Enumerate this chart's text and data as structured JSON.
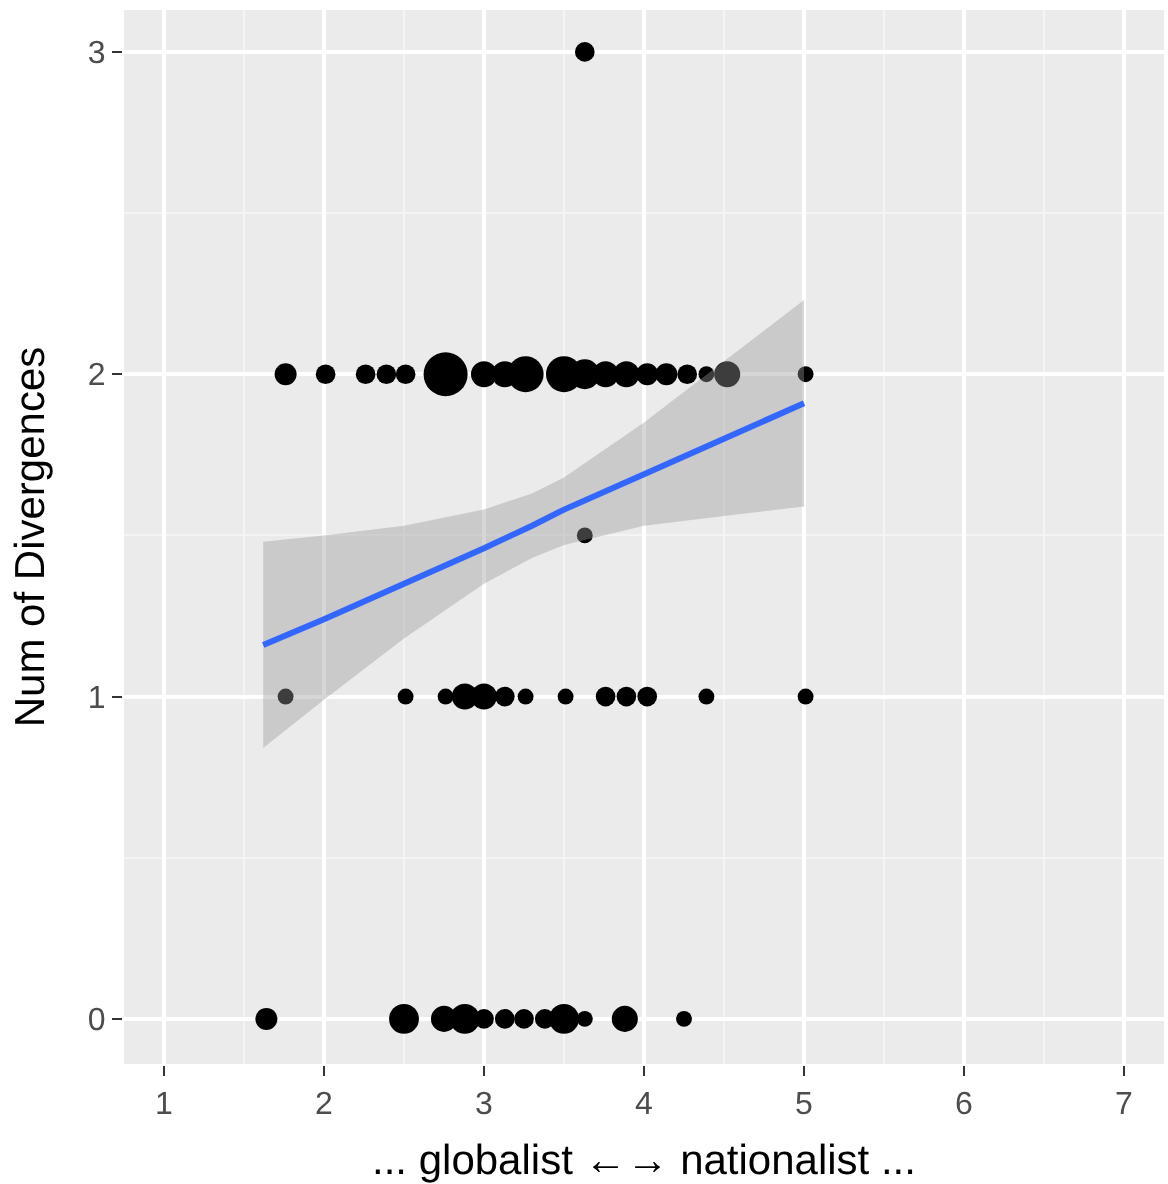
{
  "chart_data": {
    "type": "bubble",
    "xlabel": "... globalist ←→ nationalist ...",
    "ylabel": "Num of Divergences",
    "xlim": [
      0.75,
      7.25
    ],
    "xticks": [
      1,
      2,
      3,
      4,
      5,
      6,
      7
    ],
    "ylim": [
      -0.14,
      3.13
    ],
    "yticks": [
      0,
      1,
      2,
      3
    ],
    "grid": true,
    "series": [
      {
        "color": "#000000",
        "x": [
          1.64,
          2.5,
          2.75,
          2.88,
          3.0,
          3.13,
          3.25,
          3.38,
          3.5,
          3.63,
          3.88,
          4.25,
          1.76,
          2.51,
          2.76,
          2.88,
          3.0,
          3.13,
          3.26,
          3.51,
          3.76,
          3.89,
          4.02,
          4.39,
          5.01,
          3.63,
          3.63,
          1.76,
          2.01,
          2.26,
          2.39,
          2.51,
          2.76,
          3.0,
          3.13,
          3.26,
          3.5,
          3.63,
          3.76,
          3.89,
          4.02,
          4.14,
          4.27,
          4.39,
          4.52,
          5.01
        ],
        "values": [
          0,
          0,
          0,
          0,
          0,
          0,
          0,
          0,
          0,
          0,
          0,
          0,
          1,
          1,
          1,
          1,
          1,
          1,
          1,
          1,
          1,
          1,
          1,
          1,
          1,
          1.5,
          3,
          2,
          2,
          2,
          2,
          2,
          2,
          2,
          2,
          2,
          2,
          2,
          2,
          2,
          2,
          2,
          2,
          2,
          2,
          2
        ],
        "sizes": [
          0.25,
          0.46,
          0.35,
          0.46,
          0.2,
          0.2,
          0.2,
          0.2,
          0.46,
          0.13,
          0.35,
          0.13,
          0.13,
          0.13,
          0.13,
          0.35,
          0.35,
          0.2,
          0.13,
          0.13,
          0.2,
          0.2,
          0.2,
          0.13,
          0.13,
          0.13,
          0.2,
          0.25,
          0.2,
          0.2,
          0.2,
          0.2,
          1,
          0.35,
          0.35,
          0.67,
          0.67,
          0.46,
          0.35,
          0.35,
          0.25,
          0.25,
          0.2,
          0.13,
          0.35,
          0.13
        ]
      },
      {
        "type": "line",
        "color": "#3366ff",
        "x": [
          1.62,
          2,
          2.5,
          3,
          3.3,
          3.5,
          4,
          4.5,
          5
        ],
        "values": [
          1.16,
          1.24,
          1.35,
          1.46,
          1.53,
          1.58,
          1.69,
          1.8,
          1.91
        ],
        "lower": [
          0.84,
          0.99,
          1.18,
          1.35,
          1.43,
          1.47,
          1.53,
          1.56,
          1.59
        ],
        "upper": [
          1.48,
          1.5,
          1.53,
          1.58,
          1.63,
          1.68,
          1.85,
          2.04,
          2.23
        ]
      }
    ]
  }
}
